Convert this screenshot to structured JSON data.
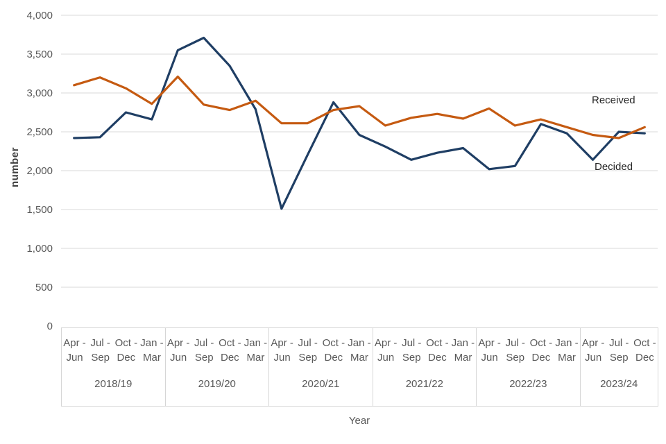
{
  "chart_data": {
    "type": "line",
    "ylabel": "number",
    "xlabel": "Year",
    "ylim": [
      0,
      4000
    ],
    "ytick_step": 500,
    "yticks": [
      "4,000",
      "3,500",
      "3,000",
      "2,500",
      "2,000",
      "1,500",
      "1,000",
      "500",
      "0"
    ],
    "grid": "horizontal",
    "legend_position": "inline-right",
    "gridline_color": "#D9D9D9",
    "year_groups": [
      {
        "label": "2018/19",
        "quarters": [
          {
            "l1": "Apr -",
            "l2": "Jun"
          },
          {
            "l1": "Jul -",
            "l2": "Sep"
          },
          {
            "l1": "Oct -",
            "l2": "Dec"
          },
          {
            "l1": "Jan -",
            "l2": "Mar"
          }
        ]
      },
      {
        "label": "2019/20",
        "quarters": [
          {
            "l1": "Apr -",
            "l2": "Jun"
          },
          {
            "l1": "Jul -",
            "l2": "Sep"
          },
          {
            "l1": "Oct -",
            "l2": "Dec"
          },
          {
            "l1": "Jan -",
            "l2": "Mar"
          }
        ]
      },
      {
        "label": "2020/21",
        "quarters": [
          {
            "l1": "Apr -",
            "l2": "Jun"
          },
          {
            "l1": "Jul -",
            "l2": "Sep"
          },
          {
            "l1": "Oct -",
            "l2": "Dec"
          },
          {
            "l1": "Jan -",
            "l2": "Mar"
          }
        ]
      },
      {
        "label": "2021/22",
        "quarters": [
          {
            "l1": "Apr -",
            "l2": "Jun"
          },
          {
            "l1": "Jul -",
            "l2": "Sep"
          },
          {
            "l1": "Oct -",
            "l2": "Dec"
          },
          {
            "l1": "Jan -",
            "l2": "Mar"
          }
        ]
      },
      {
        "label": "2022/23",
        "quarters": [
          {
            "l1": "Apr -",
            "l2": "Jun"
          },
          {
            "l1": "Jul -",
            "l2": "Sep"
          },
          {
            "l1": "Oct -",
            "l2": "Dec"
          },
          {
            "l1": "Jan -",
            "l2": "Mar"
          }
        ]
      },
      {
        "label": "2023/24",
        "quarters": [
          {
            "l1": "Apr -",
            "l2": "Jun"
          },
          {
            "l1": "Jul -",
            "l2": "Sep"
          },
          {
            "l1": "Oct -",
            "l2": "Dec"
          }
        ]
      }
    ],
    "series": [
      {
        "name": "Received",
        "color": "#C55A11",
        "values": [
          3100,
          3200,
          3060,
          2860,
          3210,
          2850,
          2780,
          2900,
          2610,
          2610,
          2780,
          2830,
          2580,
          2680,
          2730,
          2670,
          2800,
          2580,
          2660,
          2560,
          2460,
          2420,
          2560
        ]
      },
      {
        "name": "Decided",
        "color": "#1F3E64",
        "values": [
          2420,
          2430,
          2750,
          2660,
          3550,
          3710,
          3350,
          2790,
          1510,
          2200,
          2880,
          2460,
          2310,
          2140,
          2230,
          2290,
          2020,
          2060,
          2600,
          2480,
          2140,
          2500,
          2480
        ]
      }
    ]
  }
}
